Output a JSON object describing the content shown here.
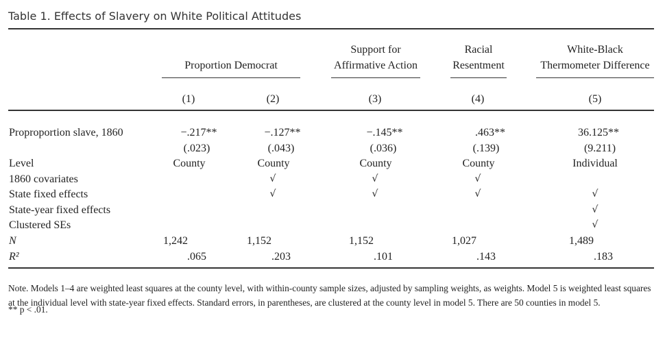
{
  "caption": "Table 1. Effects of Slavery on White Political Attitudes",
  "group_headers": [
    {
      "line1": "",
      "line2": "Proportion Democrat"
    },
    {
      "line1": "Support for",
      "line2": "Affirmative Action"
    },
    {
      "line1": "Racial",
      "line2": "Resentment"
    },
    {
      "line1": "White-Black",
      "line2": "Thermometer Difference"
    }
  ],
  "column_numbers": [
    "(1)",
    "(2)",
    "(3)",
    "(4)",
    "(5)"
  ],
  "rows": {
    "prop_slave": {
      "label": "Proproportion slave, 1860",
      "values": [
        "−.217**",
        "−.127**",
        "−.145**",
        ".463**",
        "36.125**"
      ]
    },
    "se": {
      "values": [
        "(.023)",
        "(.043)",
        "(.036)",
        "(.139)",
        "(9.211)"
      ]
    },
    "level": {
      "label": "Level",
      "values": [
        "County",
        "County",
        "County",
        "County",
        "Individual"
      ]
    },
    "covariates": {
      "label": "1860 covariates",
      "values": [
        "",
        "√",
        "√",
        "√",
        ""
      ]
    },
    "state_fe": {
      "label": "State fixed effects",
      "values": [
        "",
        "√",
        "√",
        "√",
        "√"
      ]
    },
    "state_year_fe": {
      "label": "State-year fixed effects",
      "values": [
        "",
        "",
        "",
        "",
        "√"
      ]
    },
    "clustered": {
      "label": "Clustered SEs",
      "values": [
        "",
        "",
        "",
        "",
        "√"
      ]
    },
    "n": {
      "label": "N",
      "values": [
        "1,242",
        "1,152",
        "1,152",
        "1,027",
        "1,489"
      ]
    },
    "r2": {
      "label": "R²",
      "values": [
        ".065",
        ".203",
        ".101",
        ".143",
        ".183"
      ]
    }
  },
  "note": "Note. Models 1–4 are weighted least squares at the county level, with within-county sample sizes, adjusted by sampling weights, as weights. Model 5 is weighted least squares at the individual level with state-year fixed effects. Standard errors, in parentheses, are clustered at the county level in model 5. There are 50 counties in model 5.",
  "significance": "** p < .01."
}
